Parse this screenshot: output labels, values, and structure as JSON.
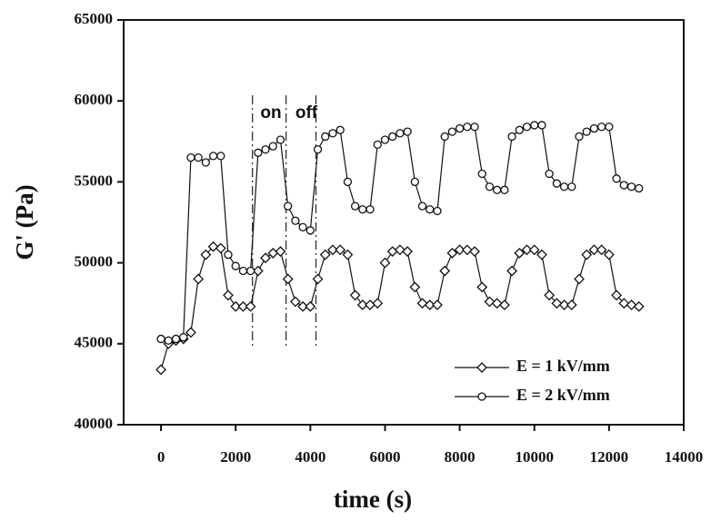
{
  "chart_data": {
    "type": "line",
    "xlabel": "time (s)",
    "ylabel": "G' (Pa)",
    "x": [
      0,
      200,
      400,
      600,
      800,
      1000,
      1200,
      1400,
      1600,
      1800,
      2000,
      2200,
      2400,
      2600,
      2800,
      3000,
      3200,
      3400,
      3600,
      3800,
      4000,
      4200,
      4400,
      4600,
      4800,
      5000,
      5200,
      5400,
      5600,
      5800,
      6000,
      6200,
      6400,
      6600,
      6800,
      7000,
      7200,
      7400,
      7600,
      7800,
      8000,
      8200,
      8400,
      8600,
      8800,
      9000,
      9200,
      9400,
      9600,
      9800,
      10000,
      10200,
      10400,
      10600,
      10800,
      11000,
      11200,
      11400,
      11600,
      11800,
      12000,
      12200,
      12400,
      12600,
      12800
    ],
    "series": [
      {
        "name": "E = 1 kV/mm",
        "marker": "diamond",
        "color": "#111111",
        "values": [
          43400,
          45000,
          45200,
          45300,
          45700,
          49000,
          50500,
          51000,
          50900,
          48000,
          47300,
          47300,
          47300,
          49500,
          50300,
          50600,
          50700,
          49000,
          47600,
          47300,
          47300,
          49000,
          50500,
          50800,
          50800,
          50500,
          48000,
          47400,
          47400,
          47500,
          50000,
          50700,
          50800,
          50700,
          48500,
          47500,
          47400,
          47400,
          49500,
          50600,
          50800,
          50800,
          50700,
          48500,
          47600,
          47500,
          47400,
          49500,
          50600,
          50800,
          50800,
          50500,
          48000,
          47500,
          47400,
          47400,
          49000,
          50500,
          50800,
          50800,
          50500,
          48000,
          47500,
          47400,
          47300
        ]
      },
      {
        "name": "E = 2 kV/mm",
        "marker": "circle",
        "color": "#111111",
        "values": [
          45300,
          45200,
          45300,
          45400,
          56500,
          56500,
          56200,
          56600,
          56600,
          50500,
          49800,
          49500,
          49500,
          56800,
          57000,
          57200,
          57600,
          53500,
          52600,
          52200,
          52000,
          57000,
          57800,
          58000,
          58200,
          55000,
          53500,
          53300,
          53300,
          57300,
          57600,
          57800,
          58000,
          58100,
          55000,
          53500,
          53300,
          53200,
          57800,
          58100,
          58300,
          58400,
          58400,
          55500,
          54700,
          54500,
          54500,
          57800,
          58200,
          58400,
          58500,
          58500,
          55500,
          54900,
          54700,
          54700,
          57800,
          58100,
          58300,
          58400,
          58400,
          55200,
          54800,
          54700,
          54600
        ]
      }
    ],
    "annotations": [
      "on",
      "off"
    ],
    "vlines": [
      2450,
      3350,
      4150
    ],
    "xlim": [
      -1000,
      14000
    ],
    "xticks": [
      0,
      2000,
      4000,
      6000,
      8000,
      10000,
      12000,
      14000
    ],
    "ylim": [
      40000,
      65000
    ],
    "yticks": [
      40000,
      45000,
      50000,
      55000,
      60000,
      65000
    ],
    "legend": "lower right",
    "grid": false
  }
}
